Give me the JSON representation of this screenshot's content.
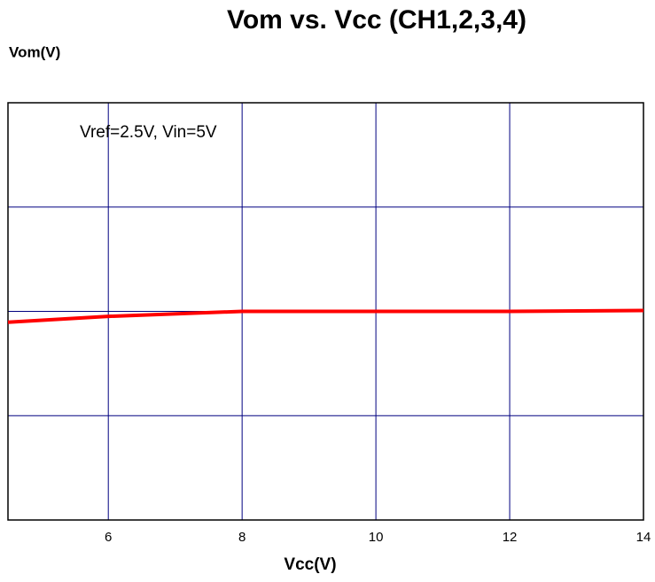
{
  "chart_data": {
    "type": "line",
    "title": "Vom vs. Vcc (CH1,2,3,4)",
    "ylabel": "Vom(V)",
    "xlabel": "Vcc(V)",
    "annotation": "Vref=2.5V, Vin=5V",
    "x": [
      4.5,
      6,
      8,
      10,
      12,
      14
    ],
    "series": [
      {
        "name": "Vom",
        "color": "#ff0000",
        "values": [
          2.37,
          2.44,
          2.5,
          2.5,
          2.5,
          2.51
        ]
      }
    ],
    "xlim": [
      4.5,
      14
    ],
    "xticks": [
      6,
      8,
      10,
      12,
      14
    ],
    "ylim": [
      0,
      5
    ],
    "yticks": [
      1.25,
      2.5,
      3.75
    ],
    "grid": true,
    "grid_color": "#000080"
  }
}
